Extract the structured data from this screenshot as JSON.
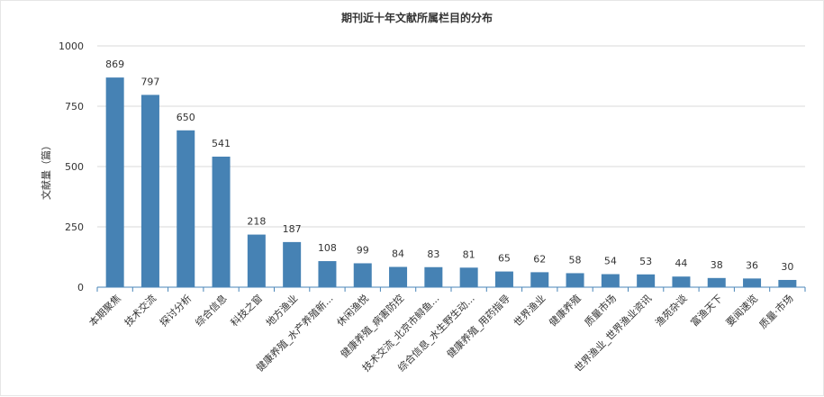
{
  "chart_data": {
    "type": "bar",
    "title": "期刊近十年文献所属栏目的分布",
    "ylabel": "文献量（篇）",
    "xlabel": "",
    "ylim": [
      0,
      1000
    ],
    "yticks": [
      0,
      250,
      500,
      750,
      1000
    ],
    "grid": true,
    "bar_color": "#4682b4",
    "categories": [
      "本期聚焦",
      "技术交流",
      "探讨分析",
      "综合信息",
      "科技之窗",
      "地方渔业",
      "健康养殖_水产养殖新...",
      "休闲渔悦",
      "健康养殖_病害防控",
      "技术交流_北京市鲟鱼...",
      "综合信息_水生野生动...",
      "健康养殖_用药指导",
      "世界渔业",
      "健康养殖",
      "质量市场",
      "世界渔业_世界渔业资讯",
      "渔苑杂谈",
      "富渔天下",
      "要闻速览",
      "质量·市场"
    ],
    "values": [
      869,
      797,
      650,
      541,
      218,
      187,
      108,
      99,
      84,
      83,
      81,
      65,
      62,
      58,
      54,
      53,
      44,
      38,
      36,
      30
    ]
  }
}
